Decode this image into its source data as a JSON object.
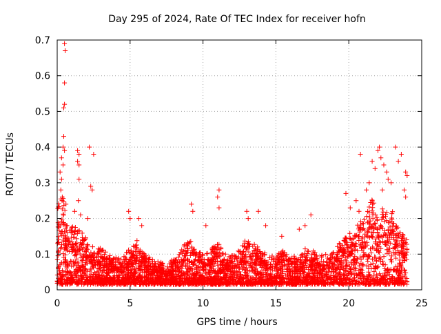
{
  "chart_data": {
    "type": "scatter",
    "title": "Day 295 of 2024, Rate Of TEC Index for receiver hofn",
    "xlabel": "GPS time / hours",
    "ylabel": "ROTI / TECUs",
    "xlim": [
      0,
      25
    ],
    "ylim": [
      0,
      0.7
    ],
    "xticks": [
      0,
      5,
      10,
      15,
      20,
      25
    ],
    "xtick_labels": [
      "0",
      "5",
      "10",
      "15",
      "20",
      "25"
    ],
    "yticks": [
      0,
      0.1,
      0.2,
      0.3,
      0.4,
      0.5,
      0.6,
      0.7
    ],
    "ytick_labels": [
      "0",
      "0.1",
      "0.2",
      "0.3",
      "0.4",
      "0.5",
      "0.6",
      "0.7"
    ],
    "grid": true,
    "legend": "none",
    "marker": "plus",
    "color": "#ff0000",
    "x_end": 24.0,
    "envelope": [
      [
        0.0,
        0.25
      ],
      [
        0.3,
        0.3
      ],
      [
        0.6,
        0.2
      ],
      [
        1.0,
        0.18
      ],
      [
        1.5,
        0.17
      ],
      [
        2.0,
        0.15
      ],
      [
        2.5,
        0.12
      ],
      [
        3.0,
        0.12
      ],
      [
        3.5,
        0.1
      ],
      [
        4.0,
        0.09
      ],
      [
        4.5,
        0.09
      ],
      [
        5.0,
        0.12
      ],
      [
        5.5,
        0.14
      ],
      [
        6.0,
        0.1
      ],
      [
        6.5,
        0.09
      ],
      [
        7.0,
        0.08
      ],
      [
        7.5,
        0.07
      ],
      [
        8.0,
        0.09
      ],
      [
        8.5,
        0.11
      ],
      [
        9.0,
        0.15
      ],
      [
        9.5,
        0.12
      ],
      [
        10.0,
        0.1
      ],
      [
        10.5,
        0.11
      ],
      [
        11.0,
        0.14
      ],
      [
        11.5,
        0.1
      ],
      [
        12.0,
        0.1
      ],
      [
        12.5,
        0.12
      ],
      [
        13.0,
        0.15
      ],
      [
        13.5,
        0.13
      ],
      [
        14.0,
        0.11
      ],
      [
        14.5,
        0.1
      ],
      [
        15.0,
        0.1
      ],
      [
        15.5,
        0.11
      ],
      [
        16.0,
        0.1
      ],
      [
        16.5,
        0.09
      ],
      [
        17.0,
        0.12
      ],
      [
        17.5,
        0.11
      ],
      [
        18.0,
        0.1
      ],
      [
        18.5,
        0.1
      ],
      [
        19.0,
        0.11
      ],
      [
        19.5,
        0.14
      ],
      [
        20.0,
        0.16
      ],
      [
        20.5,
        0.18
      ],
      [
        21.0,
        0.2
      ],
      [
        21.5,
        0.27
      ],
      [
        22.0,
        0.25
      ],
      [
        22.5,
        0.22
      ],
      [
        23.0,
        0.22
      ],
      [
        23.5,
        0.18
      ],
      [
        24.0,
        0.15
      ]
    ],
    "outliers": [
      [
        0.5,
        0.69
      ],
      [
        0.55,
        0.67
      ],
      [
        0.5,
        0.58
      ],
      [
        0.5,
        0.52
      ],
      [
        0.45,
        0.51
      ],
      [
        0.45,
        0.43
      ],
      [
        0.4,
        0.4
      ],
      [
        0.5,
        0.39
      ],
      [
        0.3,
        0.37
      ],
      [
        0.4,
        0.35
      ],
      [
        0.2,
        0.33
      ],
      [
        0.3,
        0.31
      ],
      [
        1.4,
        0.39
      ],
      [
        1.5,
        0.38
      ],
      [
        1.4,
        0.36
      ],
      [
        1.5,
        0.35
      ],
      [
        2.2,
        0.4
      ],
      [
        2.5,
        0.38
      ],
      [
        2.3,
        0.29
      ],
      [
        2.4,
        0.28
      ],
      [
        1.5,
        0.31
      ],
      [
        1.45,
        0.25
      ],
      [
        0.25,
        0.28
      ],
      [
        0.35,
        0.26
      ],
      [
        0.6,
        0.24
      ],
      [
        1.2,
        0.22
      ],
      [
        1.6,
        0.21
      ],
      [
        2.1,
        0.2
      ],
      [
        4.9,
        0.22
      ],
      [
        5.0,
        0.2
      ],
      [
        5.6,
        0.2
      ],
      [
        5.8,
        0.18
      ],
      [
        9.2,
        0.24
      ],
      [
        9.3,
        0.22
      ],
      [
        11.1,
        0.28
      ],
      [
        11.0,
        0.26
      ],
      [
        11.1,
        0.23
      ],
      [
        10.2,
        0.18
      ],
      [
        13.0,
        0.22
      ],
      [
        13.1,
        0.2
      ],
      [
        13.8,
        0.22
      ],
      [
        14.3,
        0.18
      ],
      [
        15.4,
        0.15
      ],
      [
        16.6,
        0.17
      ],
      [
        17.0,
        0.18
      ],
      [
        17.4,
        0.21
      ],
      [
        19.8,
        0.27
      ],
      [
        20.1,
        0.23
      ],
      [
        20.5,
        0.25
      ],
      [
        20.7,
        0.22
      ],
      [
        20.8,
        0.38
      ],
      [
        21.2,
        0.28
      ],
      [
        21.4,
        0.3
      ],
      [
        21.6,
        0.36
      ],
      [
        21.8,
        0.34
      ],
      [
        22.0,
        0.39
      ],
      [
        22.1,
        0.4
      ],
      [
        22.2,
        0.37
      ],
      [
        22.4,
        0.35
      ],
      [
        22.6,
        0.33
      ],
      [
        22.9,
        0.3
      ],
      [
        23.2,
        0.4
      ],
      [
        23.4,
        0.36
      ],
      [
        23.6,
        0.38
      ],
      [
        23.9,
        0.33
      ],
      [
        23.8,
        0.28
      ],
      [
        24.0,
        0.32
      ],
      [
        23.9,
        0.26
      ],
      [
        22.7,
        0.31
      ],
      [
        22.3,
        0.28
      ]
    ]
  }
}
